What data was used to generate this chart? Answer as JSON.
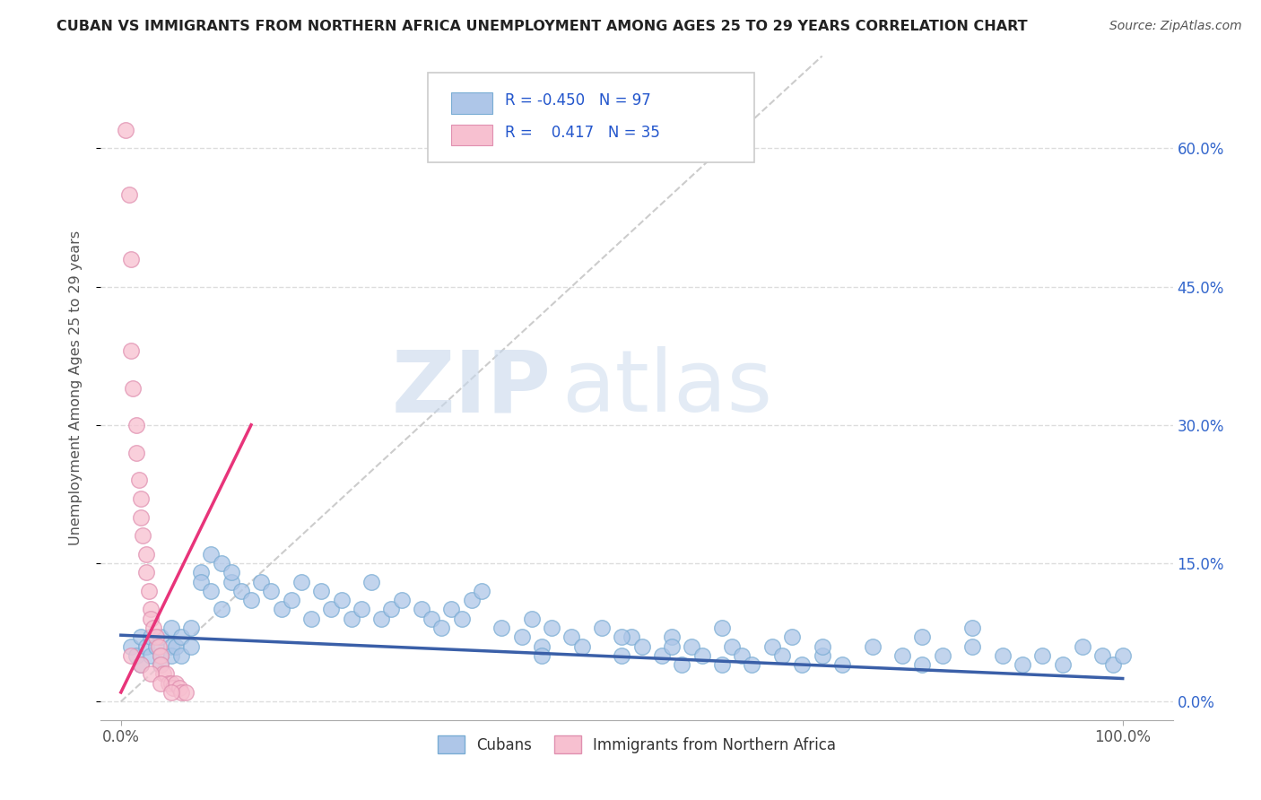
{
  "title": "CUBAN VS IMMIGRANTS FROM NORTHERN AFRICA UNEMPLOYMENT AMONG AGES 25 TO 29 YEARS CORRELATION CHART",
  "source": "Source: ZipAtlas.com",
  "ylabel": "Unemployment Among Ages 25 to 29 years",
  "xlim": [
    -0.02,
    1.05
  ],
  "ylim": [
    -0.02,
    0.7
  ],
  "xticks": [
    0.0,
    1.0
  ],
  "xticklabels": [
    "0.0%",
    "100.0%"
  ],
  "yticks_right": [
    0.0,
    0.15,
    0.3,
    0.45,
    0.6
  ],
  "yticklabels_right": [
    "0.0%",
    "15.0%",
    "30.0%",
    "45.0%",
    "60.0%"
  ],
  "legend_blue_R": "-0.450",
  "legend_blue_N": "97",
  "legend_pink_R": "0.417",
  "legend_pink_N": "35",
  "blue_scatter_color": "#aec6e8",
  "blue_edge_color": "#7aadd4",
  "pink_scatter_color": "#f7c0d0",
  "pink_edge_color": "#e090b0",
  "blue_line_color": "#3a5fa8",
  "pink_line_color": "#e8347a",
  "gray_line_color": "#cccccc",
  "watermark_color": "#d5e5f5",
  "title_color": "#222222",
  "source_color": "#555555",
  "ylabel_color": "#555555",
  "tick_color": "#555555",
  "grid_color": "#dddddd",
  "legend_text_color": "#2255cc",
  "blue_trend_x": [
    0.0,
    1.0
  ],
  "blue_trend_y": [
    0.072,
    0.025
  ],
  "pink_trend_x": [
    0.0,
    0.13
  ],
  "pink_trend_y": [
    0.01,
    0.3
  ],
  "gray_trend_x": [
    0.0,
    0.7
  ],
  "gray_trend_y": [
    0.0,
    0.7
  ],
  "cubans_x": [
    0.01,
    0.015,
    0.02,
    0.02,
    0.025,
    0.03,
    0.03,
    0.035,
    0.04,
    0.04,
    0.04,
    0.05,
    0.05,
    0.05,
    0.055,
    0.06,
    0.06,
    0.07,
    0.07,
    0.08,
    0.08,
    0.09,
    0.09,
    0.1,
    0.1,
    0.11,
    0.11,
    0.12,
    0.13,
    0.14,
    0.15,
    0.16,
    0.17,
    0.18,
    0.19,
    0.2,
    0.21,
    0.22,
    0.23,
    0.24,
    0.25,
    0.26,
    0.27,
    0.28,
    0.3,
    0.31,
    0.32,
    0.33,
    0.34,
    0.35,
    0.36,
    0.38,
    0.4,
    0.41,
    0.42,
    0.43,
    0.45,
    0.46,
    0.48,
    0.5,
    0.51,
    0.52,
    0.54,
    0.55,
    0.56,
    0.57,
    0.58,
    0.6,
    0.61,
    0.62,
    0.63,
    0.65,
    0.66,
    0.68,
    0.7,
    0.72,
    0.75,
    0.78,
    0.8,
    0.82,
    0.85,
    0.88,
    0.9,
    0.92,
    0.94,
    0.96,
    0.98,
    0.99,
    1.0,
    0.5,
    0.6,
    0.7,
    0.8,
    0.42,
    0.55,
    0.67,
    0.85
  ],
  "cubans_y": [
    0.06,
    0.05,
    0.07,
    0.04,
    0.06,
    0.05,
    0.07,
    0.06,
    0.05,
    0.07,
    0.04,
    0.06,
    0.05,
    0.08,
    0.06,
    0.07,
    0.05,
    0.06,
    0.08,
    0.14,
    0.13,
    0.16,
    0.12,
    0.15,
    0.1,
    0.13,
    0.14,
    0.12,
    0.11,
    0.13,
    0.12,
    0.1,
    0.11,
    0.13,
    0.09,
    0.12,
    0.1,
    0.11,
    0.09,
    0.1,
    0.13,
    0.09,
    0.1,
    0.11,
    0.1,
    0.09,
    0.08,
    0.1,
    0.09,
    0.11,
    0.12,
    0.08,
    0.07,
    0.09,
    0.06,
    0.08,
    0.07,
    0.06,
    0.08,
    0.05,
    0.07,
    0.06,
    0.05,
    0.07,
    0.04,
    0.06,
    0.05,
    0.04,
    0.06,
    0.05,
    0.04,
    0.06,
    0.05,
    0.04,
    0.05,
    0.04,
    0.06,
    0.05,
    0.04,
    0.05,
    0.06,
    0.05,
    0.04,
    0.05,
    0.04,
    0.06,
    0.05,
    0.04,
    0.05,
    0.07,
    0.08,
    0.06,
    0.07,
    0.05,
    0.06,
    0.07,
    0.08
  ],
  "nafrica_x": [
    0.005,
    0.008,
    0.01,
    0.01,
    0.012,
    0.015,
    0.015,
    0.018,
    0.02,
    0.02,
    0.022,
    0.025,
    0.025,
    0.028,
    0.03,
    0.03,
    0.032,
    0.035,
    0.038,
    0.04,
    0.04,
    0.042,
    0.045,
    0.048,
    0.05,
    0.052,
    0.055,
    0.058,
    0.06,
    0.065,
    0.01,
    0.02,
    0.03,
    0.04,
    0.05
  ],
  "nafrica_y": [
    0.62,
    0.55,
    0.48,
    0.38,
    0.34,
    0.3,
    0.27,
    0.24,
    0.22,
    0.2,
    0.18,
    0.16,
    0.14,
    0.12,
    0.1,
    0.09,
    0.08,
    0.07,
    0.06,
    0.05,
    0.04,
    0.03,
    0.03,
    0.02,
    0.02,
    0.015,
    0.02,
    0.015,
    0.01,
    0.01,
    0.05,
    0.04,
    0.03,
    0.02,
    0.01
  ]
}
